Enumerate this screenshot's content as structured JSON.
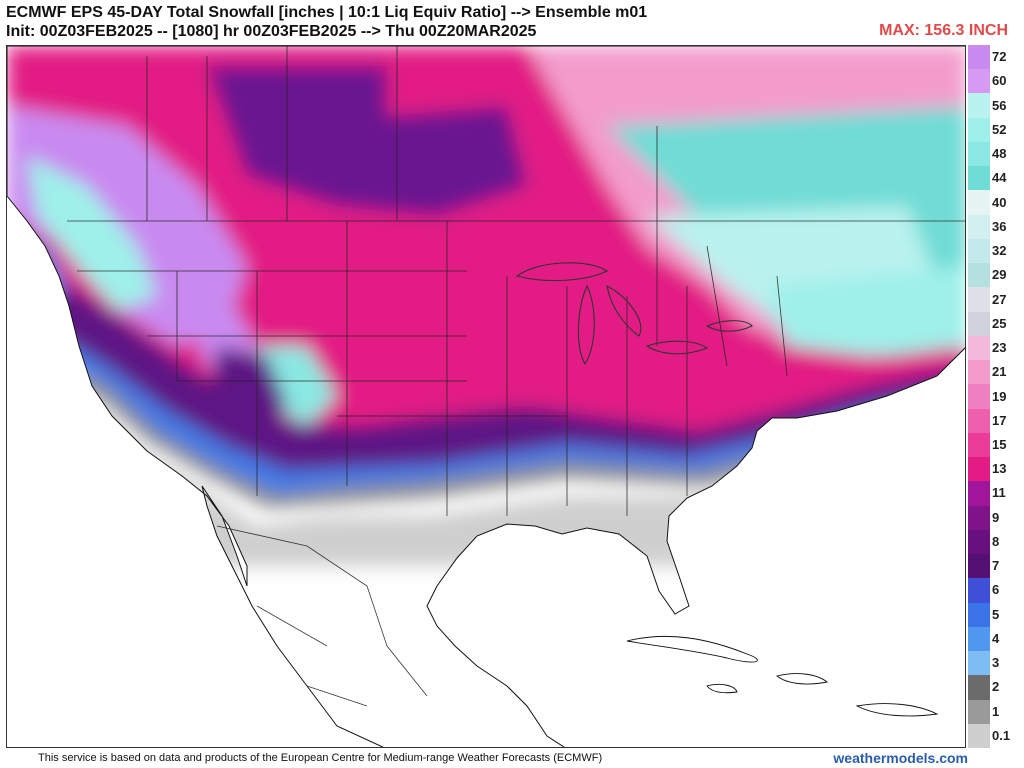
{
  "header": {
    "title": "ECMWF EPS 45-DAY Total Snowfall [inches | 10:1 Liq Equiv Ratio] --> Ensemble m01",
    "init_line": "Init: 00Z03FEB2025 -- [1080] hr 00Z03FEB2025 --> Thu 00Z20MAR2025",
    "max_label": "MAX: 156.3 INCH"
  },
  "colorbar": {
    "labels": [
      "72",
      "60",
      "56",
      "52",
      "48",
      "44",
      "40",
      "36",
      "32",
      "29",
      "27",
      "25",
      "23",
      "21",
      "19",
      "17",
      "15",
      "13",
      "11",
      "9",
      "8",
      "7",
      "6",
      "5",
      "4",
      "3",
      "2",
      "1",
      "0.1"
    ],
    "colors": [
      "#c98af0",
      "#d79af3",
      "#b9f2ee",
      "#9ff0ea",
      "#8ae8e2",
      "#6fdcd5",
      "#e6f4f4",
      "#d2f0f0",
      "#c2eaea",
      "#b4e0e0",
      "#e0e0e8",
      "#d2d2de",
      "#f3b8da",
      "#f39ccc",
      "#f07fbf",
      "#ee5fae",
      "#ea3b98",
      "#e21c84",
      "#a0159a",
      "#80128a",
      "#68107e",
      "#561074",
      "#3f4fd8",
      "#3a74e8",
      "#4f97ef",
      "#7ebcf4",
      "#6b6b6b",
      "#9a9a9a",
      "#cfcfcf"
    ]
  },
  "footer": {
    "credit": "This service is based on data and products of the European Centre for Medium-range Weather Forecasts (ECMWF)",
    "brand": "weathermodels.com"
  }
}
